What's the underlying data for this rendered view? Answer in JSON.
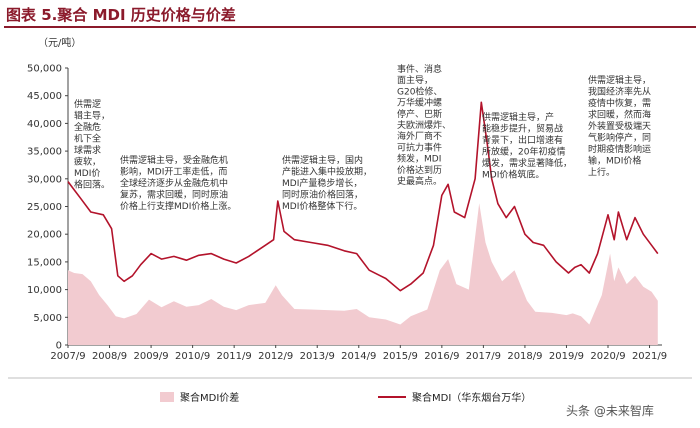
{
  "header": {
    "title": "图表 5.聚合 MDI 历史价格与价差"
  },
  "chart_data": {
    "type": "line",
    "unit_label": "（元/吨）",
    "x_ticks": [
      "2007/9",
      "2008/9",
      "2009/9",
      "2010/9",
      "2011/9",
      "2012/9",
      "2013/9",
      "2014/9",
      "2015/9",
      "2016/9",
      "2017/9",
      "2018/9",
      "2019/9",
      "2020/9",
      "2021/9"
    ],
    "y_ticks": [
      "0",
      "5,000",
      "10,000",
      "15,000",
      "20,000",
      "25,000",
      "30,000",
      "35,000",
      "40,000",
      "45,000",
      "50,000"
    ],
    "ylim": [
      0,
      50000
    ],
    "series": [
      {
        "name": "聚合MDI价差",
        "kind": "area",
        "color": "#f2cbd0",
        "points": [
          [
            2007.75,
            13500
          ],
          [
            2007.9,
            13000
          ],
          [
            2008.1,
            12800
          ],
          [
            2008.3,
            11500
          ],
          [
            2008.5,
            9000
          ],
          [
            2008.7,
            7200
          ],
          [
            2008.9,
            5200
          ],
          [
            2009.1,
            4800
          ],
          [
            2009.4,
            5600
          ],
          [
            2009.7,
            8200
          ],
          [
            2010.0,
            6800
          ],
          [
            2010.3,
            7900
          ],
          [
            2010.6,
            6900
          ],
          [
            2010.9,
            7200
          ],
          [
            2011.2,
            8300
          ],
          [
            2011.5,
            6900
          ],
          [
            2011.8,
            6300
          ],
          [
            2012.1,
            7200
          ],
          [
            2012.5,
            7600
          ],
          [
            2012.75,
            10800
          ],
          [
            2012.9,
            9000
          ],
          [
            2013.2,
            6500
          ],
          [
            2013.6,
            6400
          ],
          [
            2014.0,
            6300
          ],
          [
            2014.4,
            6200
          ],
          [
            2014.7,
            6500
          ],
          [
            2015.0,
            5000
          ],
          [
            2015.4,
            4600
          ],
          [
            2015.75,
            3700
          ],
          [
            2016.0,
            5200
          ],
          [
            2016.4,
            6400
          ],
          [
            2016.7,
            13500
          ],
          [
            2016.9,
            15500
          ],
          [
            2017.1,
            11000
          ],
          [
            2017.4,
            10000
          ],
          [
            2017.65,
            25600
          ],
          [
            2017.8,
            18500
          ],
          [
            2017.95,
            15000
          ],
          [
            2018.2,
            11500
          ],
          [
            2018.5,
            13500
          ],
          [
            2018.8,
            8000
          ],
          [
            2019.0,
            6000
          ],
          [
            2019.4,
            5800
          ],
          [
            2019.75,
            5400
          ],
          [
            2019.9,
            5700
          ],
          [
            2020.1,
            5200
          ],
          [
            2020.3,
            3700
          ],
          [
            2020.6,
            9000
          ],
          [
            2020.8,
            16500
          ],
          [
            2020.9,
            11500
          ],
          [
            2021.0,
            14000
          ],
          [
            2021.2,
            11000
          ],
          [
            2021.4,
            12500
          ],
          [
            2021.6,
            10500
          ],
          [
            2021.8,
            9600
          ],
          [
            2021.95,
            8000
          ]
        ]
      },
      {
        "name": "聚合MDI（华东烟台万华）",
        "kind": "line",
        "color": "#b3132b",
        "points": [
          [
            2007.75,
            29500
          ],
          [
            2007.9,
            28000
          ],
          [
            2008.05,
            26500
          ],
          [
            2008.3,
            24000
          ],
          [
            2008.6,
            23500
          ],
          [
            2008.8,
            21000
          ],
          [
            2008.95,
            12500
          ],
          [
            2009.1,
            11500
          ],
          [
            2009.3,
            12500
          ],
          [
            2009.5,
            14500
          ],
          [
            2009.75,
            16500
          ],
          [
            2010.0,
            15500
          ],
          [
            2010.3,
            16000
          ],
          [
            2010.6,
            15300
          ],
          [
            2010.9,
            16200
          ],
          [
            2011.2,
            16500
          ],
          [
            2011.5,
            15500
          ],
          [
            2011.8,
            14800
          ],
          [
            2012.1,
            16000
          ],
          [
            2012.5,
            18000
          ],
          [
            2012.7,
            19000
          ],
          [
            2012.8,
            26000
          ],
          [
            2012.95,
            20500
          ],
          [
            2013.2,
            19000
          ],
          [
            2013.6,
            18500
          ],
          [
            2014.0,
            18000
          ],
          [
            2014.4,
            17000
          ],
          [
            2014.7,
            16500
          ],
          [
            2015.0,
            13500
          ],
          [
            2015.4,
            12000
          ],
          [
            2015.75,
            9800
          ],
          [
            2016.0,
            11000
          ],
          [
            2016.3,
            13000
          ],
          [
            2016.55,
            18000
          ],
          [
            2016.75,
            27000
          ],
          [
            2016.9,
            29000
          ],
          [
            2017.05,
            24000
          ],
          [
            2017.3,
            23000
          ],
          [
            2017.55,
            30000
          ],
          [
            2017.7,
            43800
          ],
          [
            2017.85,
            36000
          ],
          [
            2017.95,
            30000
          ],
          [
            2018.1,
            25500
          ],
          [
            2018.3,
            23000
          ],
          [
            2018.5,
            25000
          ],
          [
            2018.75,
            20000
          ],
          [
            2018.95,
            18500
          ],
          [
            2019.2,
            18000
          ],
          [
            2019.5,
            15000
          ],
          [
            2019.8,
            13000
          ],
          [
            2019.95,
            14000
          ],
          [
            2020.1,
            14500
          ],
          [
            2020.3,
            13000
          ],
          [
            2020.5,
            16500
          ],
          [
            2020.75,
            23500
          ],
          [
            2020.9,
            19000
          ],
          [
            2021.0,
            24000
          ],
          [
            2021.2,
            19000
          ],
          [
            2021.4,
            23000
          ],
          [
            2021.6,
            20000
          ],
          [
            2021.8,
            18000
          ],
          [
            2021.95,
            16500
          ]
        ]
      }
    ],
    "annotations": [
      {
        "lines": [
          "供需逻",
          "辑主导，",
          "全融危",
          "机下全",
          "球需求",
          "疲软，",
          "MDI价",
          "格回落。"
        ]
      },
      {
        "lines": [
          "供需逻辑主导，受金融危机",
          "影响，MDI开工率走低，而",
          "全球经济逐步从金融危机中",
          "复苏，需求回暖，同时原油",
          "价格上行支撑MDI价格上涨。"
        ]
      },
      {
        "lines": [
          "供需逻辑主导，国内",
          "产能进入集中投放期，",
          "MDI产量稳步增长，",
          "同时原油价格回落，",
          "MDI价格整体下行。"
        ]
      },
      {
        "lines": [
          "事件、消息",
          "面主导，",
          "G20检修、",
          "万华缓冲螺",
          "停产、巴斯",
          "夫欧洲爆炸、",
          "海外厂商不",
          "可抗力事件",
          "频发，MDI",
          "价格达到历",
          "史最高点。"
        ]
      },
      {
        "lines": [
          "供需逻辑主导，产",
          "能稳步提升，贸易战",
          "背景下，出口增速有",
          "所放缓，20年初疫情",
          "爆发，需求显著降低，",
          "MDI价格筑底。"
        ]
      },
      {
        "lines": [
          "供需逻辑主导，",
          "我国经济率先从",
          "疫情中恢复，需",
          "求回暖，然而海",
          "外装置受极端天",
          "气影响停产，同",
          "时期疫情影响运",
          "输，MDI价格",
          "上行。"
        ]
      }
    ]
  },
  "watermark": {
    "text": "头条 @未来智库"
  }
}
